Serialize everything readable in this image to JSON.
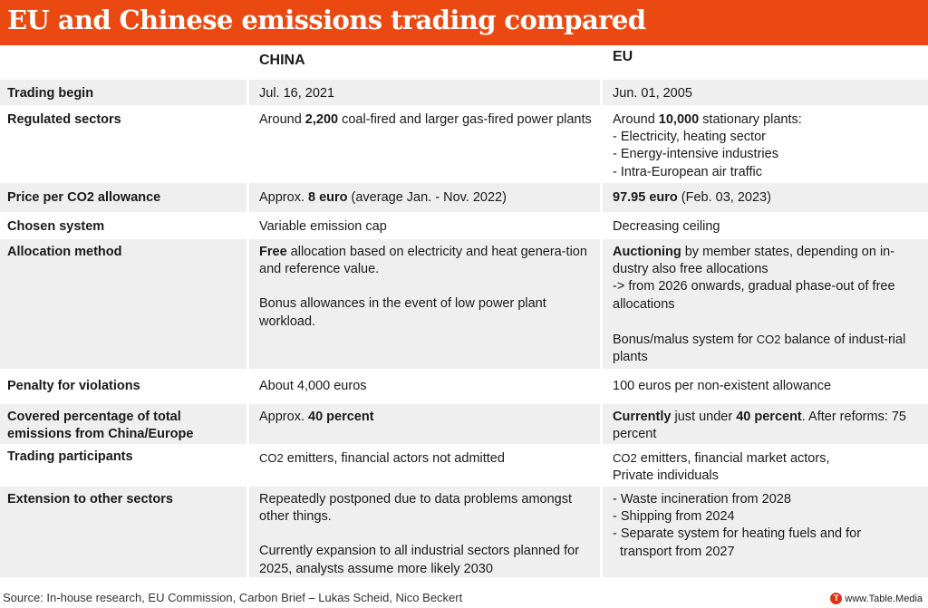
{
  "title": "EU and Chinese emissions trading compared",
  "columns": {
    "china": "CHINA",
    "eu": "EU"
  },
  "rows": {
    "trading_begin": {
      "label": "Trading begin",
      "china": "Jul. 16, 2021",
      "eu": "Jun. 01, 2005"
    },
    "regulated_sectors": {
      "label": "Regulated sectors",
      "china": {
        "pre": "Around ",
        "bold": "2,200",
        "post": " coal-fired and larger gas-fired power plants"
      },
      "eu": {
        "pre": "Around ",
        "bold": "10,000",
        "post": " stationary plants:",
        "items": [
          "- Electricity, heating sector",
          "- Energy-intensive industries",
          "- Intra-European air traffic"
        ]
      }
    },
    "price": {
      "label": "Price per CO2 allowance",
      "china": {
        "pre": "Approx. ",
        "bold": "8 euro",
        "post": " (average Jan. - Nov. 2022)"
      },
      "eu": {
        "bold": "97.95 euro",
        "post": " (Feb. 03, 2023)"
      }
    },
    "chosen_system": {
      "label": "Chosen system",
      "china": "Variable emission cap",
      "eu": "Decreasing ceiling"
    },
    "allocation": {
      "label": "Allocation method",
      "china": {
        "bold": "Free",
        "post": " allocation based on electricity and heat genera-tion and reference value.",
        "para2": "Bonus allowances in the event of low power plant workload."
      },
      "eu": {
        "bold": "Auctioning",
        "post": " by member states, depending on in-dustry also free allocations",
        "line2": "-> from 2026 onwards, gradual phase-out of free allocations",
        "para2_pre": "Bonus/malus system for ",
        "para2_co2": "CO2",
        "para2_post": " balance of indust-rial plants"
      }
    },
    "penalty": {
      "label": "Penalty for violations",
      "china": "About 4,000 euros",
      "eu": "100 euros per non-existent allowance"
    },
    "covered": {
      "label": "Covered percentage of total emissions from China/Europe",
      "china": {
        "pre": "Approx. ",
        "bold": "40 percent"
      },
      "eu": {
        "bold1": "Currently",
        "mid": " just under ",
        "bold2": "40 percent",
        "post": ". After reforms: 75 percent"
      }
    },
    "participants": {
      "label": "Trading participants",
      "china": {
        "co2": "CO2",
        "post": " emitters, financial actors not admitted"
      },
      "eu": {
        "co2": "CO2",
        "post": " emitters, financial market actors,",
        "line2": "Private individuals"
      }
    },
    "extension": {
      "label": "Extension to other sectors",
      "china": {
        "para1": "Repeatedly postponed due to data problems amongst other things.",
        "para2": "Currently expansion to all industrial sectors planned for 2025, analysts assume more likely 2030"
      },
      "eu": {
        "items": [
          "- Waste incineration from 2028",
          "- Shipping from 2024",
          "- Separate system for heating fuels and for"
        ],
        "item3_cont": "transport from 2027"
      }
    }
  },
  "footer": {
    "source": "Source: In-house research, EU Commission, Carbon Brief – Lukas Scheid, Nico Beckert",
    "brand": "www.Table.Media",
    "brand_logo": "T"
  },
  "colors": {
    "title_bg": "#ea4a12",
    "row_shade": "#efefef",
    "brand_logo": "#d9331c"
  }
}
